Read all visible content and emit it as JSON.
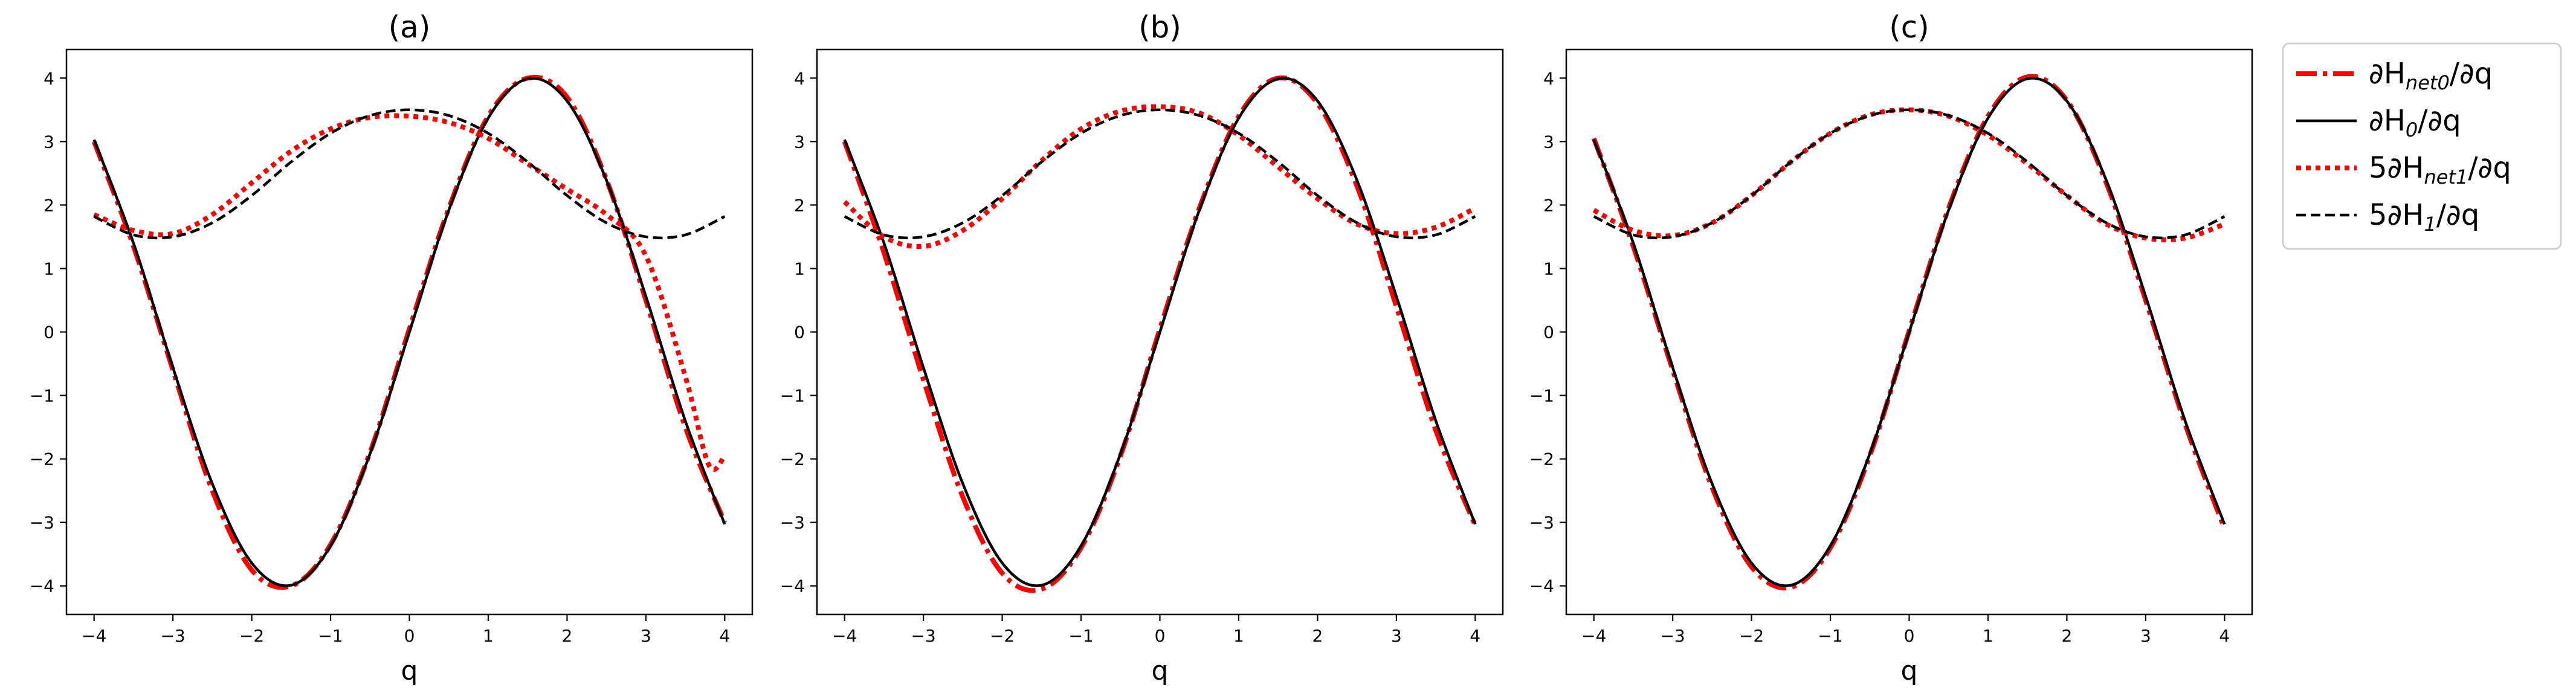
{
  "legend": {
    "placement": "outside-right",
    "entries": [
      {
        "key": "net0",
        "prefix": "∂H",
        "sub": "net0",
        "suffix": "/∂q",
        "color": "#ff0000",
        "style": "dashdot"
      },
      {
        "key": "true0",
        "prefix": "∂H",
        "sub": "0",
        "suffix": "/∂q",
        "color": "#000000",
        "style": "solid"
      },
      {
        "key": "net1",
        "prefix": "5∂H",
        "sub": "net1",
        "suffix": "/∂q",
        "color": "#ff0000",
        "style": "dotted"
      },
      {
        "key": "true1",
        "prefix": "5∂H",
        "sub": "1",
        "suffix": "/∂q",
        "color": "#000000",
        "style": "dashed"
      }
    ]
  },
  "chart_data": [
    {
      "type": "line",
      "title": "(a)",
      "xlabel": "q",
      "ylabel": "",
      "xlim": [
        -4.35,
        4.35
      ],
      "ylim": [
        -4.45,
        4.45
      ],
      "xticks": [
        -4,
        -3,
        -2,
        -1,
        0,
        1,
        2,
        3,
        4
      ],
      "yticks": [
        -4,
        -3,
        -2,
        -1,
        0,
        1,
        2,
        3,
        4
      ],
      "grid": false,
      "series": [
        {
          "key": "true0",
          "x": [
            -4,
            -3.5,
            -3,
            -2.5,
            -2,
            -1.5,
            -1,
            -0.5,
            0,
            0.5,
            1,
            1.5,
            2,
            2.5,
            3,
            3.5,
            4
          ],
          "y": [
            3.03,
            1.4,
            -0.56,
            -2.39,
            -3.64,
            -3.99,
            -3.37,
            -1.92,
            0,
            1.92,
            3.37,
            3.99,
            3.64,
            2.39,
            0.56,
            -1.4,
            -3.03
          ]
        },
        {
          "key": "net0",
          "x": [
            -4,
            -3.5,
            -3,
            -2.5,
            -2,
            -1.5,
            -1,
            -0.5,
            0,
            0.5,
            1,
            1.5,
            2,
            2.5,
            3,
            3.5,
            4
          ],
          "y": [
            3.0,
            1.35,
            -0.6,
            -2.5,
            -3.75,
            -4.0,
            -3.35,
            -1.9,
            0.05,
            1.95,
            3.4,
            4.0,
            3.7,
            2.4,
            0.5,
            -1.5,
            -3.0
          ]
        },
        {
          "key": "true1",
          "x": [
            -4,
            -3.5,
            -3,
            -2.5,
            -2,
            -1.5,
            -1,
            -0.5,
            0,
            0.5,
            1,
            1.5,
            2,
            2.5,
            3,
            3.5,
            4
          ],
          "y": [
            1.82,
            1.53,
            1.5,
            1.72,
            2.15,
            2.68,
            3.13,
            3.41,
            3.5,
            3.41,
            3.13,
            2.68,
            2.15,
            1.72,
            1.5,
            1.53,
            1.82
          ]
        },
        {
          "key": "net1",
          "x": [
            -4,
            -3.5,
            -3,
            -2.5,
            -2,
            -1.5,
            -1,
            -0.5,
            0,
            0.5,
            1,
            1.5,
            2,
            2.5,
            3,
            3.5,
            3.8,
            4
          ],
          "y": [
            1.85,
            1.6,
            1.55,
            1.85,
            2.35,
            2.85,
            3.2,
            3.38,
            3.4,
            3.3,
            3.05,
            2.65,
            2.25,
            1.85,
            1.2,
            -0.7,
            -2.1,
            -1.95
          ]
        }
      ]
    },
    {
      "type": "line",
      "title": "(b)",
      "xlabel": "q",
      "ylabel": "",
      "xlim": [
        -4.35,
        4.35
      ],
      "ylim": [
        -4.45,
        4.45
      ],
      "xticks": [
        -4,
        -3,
        -2,
        -1,
        0,
        1,
        2,
        3,
        4
      ],
      "yticks": [
        -4,
        -3,
        -2,
        -1,
        0,
        1,
        2,
        3,
        4
      ],
      "grid": false,
      "series": [
        {
          "key": "true0",
          "x": [
            -4,
            -3.5,
            -3,
            -2.5,
            -2,
            -1.5,
            -1,
            -0.5,
            0,
            0.5,
            1,
            1.5,
            2,
            2.5,
            3,
            3.5,
            4
          ],
          "y": [
            3.03,
            1.4,
            -0.56,
            -2.39,
            -3.64,
            -3.99,
            -3.37,
            -1.92,
            0,
            1.92,
            3.37,
            3.99,
            3.64,
            2.39,
            0.56,
            -1.4,
            -3.03
          ]
        },
        {
          "key": "net0",
          "x": [
            -4,
            -3.5,
            -3,
            -2.5,
            -2,
            -1.5,
            -1,
            -0.5,
            0,
            0.5,
            1,
            1.5,
            2,
            2.5,
            3,
            3.5,
            4
          ],
          "y": [
            3.0,
            1.25,
            -0.75,
            -2.6,
            -3.8,
            -4.05,
            -3.4,
            -1.95,
            0.05,
            1.95,
            3.4,
            4.0,
            3.6,
            2.3,
            0.4,
            -1.55,
            -3.05
          ]
        },
        {
          "key": "true1",
          "x": [
            -4,
            -3.5,
            -3,
            -2.5,
            -2,
            -1.5,
            -1,
            -0.5,
            0,
            0.5,
            1,
            1.5,
            2,
            2.5,
            3,
            3.5,
            4
          ],
          "y": [
            1.82,
            1.53,
            1.5,
            1.72,
            2.15,
            2.68,
            3.13,
            3.41,
            3.5,
            3.41,
            3.13,
            2.68,
            2.15,
            1.72,
            1.5,
            1.53,
            1.82
          ]
        },
        {
          "key": "net1",
          "x": [
            -4,
            -3.5,
            -3,
            -2.5,
            -2,
            -1.5,
            -1,
            -0.5,
            0,
            0.5,
            1,
            1.5,
            2,
            2.5,
            3,
            3.5,
            4
          ],
          "y": [
            2.05,
            1.5,
            1.35,
            1.6,
            2.1,
            2.7,
            3.2,
            3.48,
            3.55,
            3.45,
            3.1,
            2.6,
            2.1,
            1.7,
            1.55,
            1.65,
            1.95
          ]
        }
      ]
    },
    {
      "type": "line",
      "title": "(c)",
      "xlabel": "q",
      "ylabel": "",
      "xlim": [
        -4.35,
        4.35
      ],
      "ylim": [
        -4.45,
        4.45
      ],
      "xticks": [
        -4,
        -3,
        -2,
        -1,
        0,
        1,
        2,
        3,
        4
      ],
      "yticks": [
        -4,
        -3,
        -2,
        -1,
        0,
        1,
        2,
        3,
        4
      ],
      "grid": false,
      "series": [
        {
          "key": "true0",
          "x": [
            -4,
            -3.5,
            -3,
            -2.5,
            -2,
            -1.5,
            -1,
            -0.5,
            0,
            0.5,
            1,
            1.5,
            2,
            2.5,
            3,
            3.5,
            4
          ],
          "y": [
            3.03,
            1.4,
            -0.56,
            -2.39,
            -3.64,
            -3.99,
            -3.37,
            -1.92,
            0,
            1.92,
            3.37,
            3.99,
            3.64,
            2.39,
            0.56,
            -1.4,
            -3.03
          ]
        },
        {
          "key": "net0",
          "x": [
            -4,
            -3.5,
            -3,
            -2.5,
            -2,
            -1.5,
            -1,
            -0.5,
            0,
            0.5,
            1,
            1.5,
            2,
            2.5,
            3,
            3.5,
            4
          ],
          "y": [
            3.05,
            1.35,
            -0.6,
            -2.45,
            -3.7,
            -4.02,
            -3.4,
            -1.95,
            0.02,
            1.95,
            3.4,
            4.02,
            3.65,
            2.35,
            0.5,
            -1.45,
            -3.1
          ]
        },
        {
          "key": "true1",
          "x": [
            -4,
            -3.5,
            -3,
            -2.5,
            -2,
            -1.5,
            -1,
            -0.5,
            0,
            0.5,
            1,
            1.5,
            2,
            2.5,
            3,
            3.5,
            4
          ],
          "y": [
            1.82,
            1.53,
            1.5,
            1.72,
            2.15,
            2.68,
            3.13,
            3.41,
            3.5,
            3.41,
            3.13,
            2.68,
            2.15,
            1.72,
            1.5,
            1.53,
            1.82
          ]
        },
        {
          "key": "net1",
          "x": [
            -4,
            -3.5,
            -3,
            -2.5,
            -2,
            -1.5,
            -1,
            -0.5,
            0,
            0.5,
            1,
            1.5,
            2,
            2.5,
            3,
            3.5,
            4
          ],
          "y": [
            1.92,
            1.6,
            1.52,
            1.72,
            2.15,
            2.68,
            3.13,
            3.42,
            3.5,
            3.4,
            3.1,
            2.65,
            2.15,
            1.7,
            1.48,
            1.48,
            1.7
          ]
        }
      ]
    }
  ]
}
